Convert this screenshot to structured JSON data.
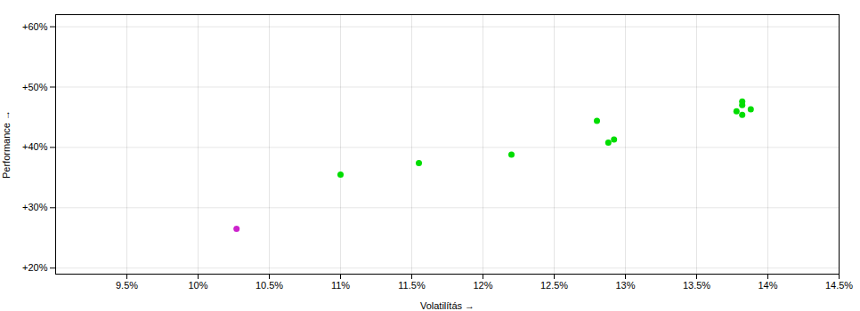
{
  "chart_data": {
    "type": "scatter",
    "xlabel": "Volatilítás",
    "ylabel": "Performance",
    "xlim": [
      0.09,
      0.145
    ],
    "ylim": [
      0.19,
      0.62
    ],
    "xticks": [
      {
        "value": 0.095,
        "label": "9.5%"
      },
      {
        "value": 0.1,
        "label": "10%"
      },
      {
        "value": 0.105,
        "label": "10.5%"
      },
      {
        "value": 0.11,
        "label": "11%"
      },
      {
        "value": 0.115,
        "label": "11.5%"
      },
      {
        "value": 0.12,
        "label": "12%"
      },
      {
        "value": 0.125,
        "label": "12.5%"
      },
      {
        "value": 0.13,
        "label": "13%"
      },
      {
        "value": 0.135,
        "label": "13.5%"
      },
      {
        "value": 0.14,
        "label": "14%"
      },
      {
        "value": 0.145,
        "label": "14.5%"
      }
    ],
    "yticks": [
      {
        "value": 0.2,
        "label": "+20%"
      },
      {
        "value": 0.3,
        "label": "+30%"
      },
      {
        "value": 0.4,
        "label": "+40%"
      },
      {
        "value": 0.5,
        "label": "+50%"
      },
      {
        "value": 0.6,
        "label": "+60%"
      }
    ],
    "grid": true,
    "series": [
      {
        "color": "#00dd00",
        "x": [
          0.11,
          0.1155,
          0.122,
          0.128,
          0.1288,
          0.1292,
          0.1378,
          0.1382,
          0.1382,
          0.1382,
          0.1388
        ],
        "values": [
          0.355,
          0.374,
          0.388,
          0.444,
          0.408,
          0.413,
          0.46,
          0.454,
          0.47,
          0.476,
          0.463
        ]
      },
      {
        "color": "#cc22cc",
        "x": [
          0.1027
        ],
        "values": [
          0.265
        ]
      }
    ]
  }
}
